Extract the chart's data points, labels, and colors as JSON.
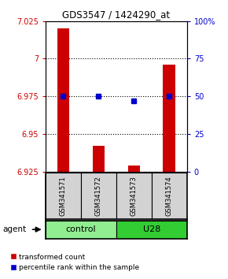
{
  "title": "GDS3547 / 1424290_at",
  "samples": [
    "GSM341571",
    "GSM341572",
    "GSM341573",
    "GSM341574"
  ],
  "bar_values": [
    7.02,
    6.942,
    6.929,
    6.996
  ],
  "bar_bottom": 6.925,
  "percentile_values": [
    6.975,
    6.975,
    6.972,
    6.975
  ],
  "ylim_left": [
    6.925,
    7.025
  ],
  "ylim_right": [
    0,
    100
  ],
  "yticks_left": [
    6.925,
    6.95,
    6.975,
    7.0,
    7.025
  ],
  "yticks_left_labels": [
    "6.925",
    "6.95",
    "6.975",
    "7",
    "7.025"
  ],
  "yticks_right": [
    0,
    25,
    50,
    75,
    100
  ],
  "yticks_right_labels": [
    "0",
    "25",
    "50",
    "75",
    "100%"
  ],
  "hlines": [
    7.0,
    6.975,
    6.95
  ],
  "groups": [
    {
      "label": "control",
      "indices": [
        0,
        1
      ],
      "color": "#90ee90"
    },
    {
      "label": "U28",
      "indices": [
        2,
        3
      ],
      "color": "#32cd32"
    }
  ],
  "bar_color": "#cc0000",
  "dot_color": "#0000cc",
  "bar_width": 0.35,
  "legend_red_label": "transformed count",
  "legend_blue_label": "percentile rank within the sample",
  "agent_label": "agent"
}
